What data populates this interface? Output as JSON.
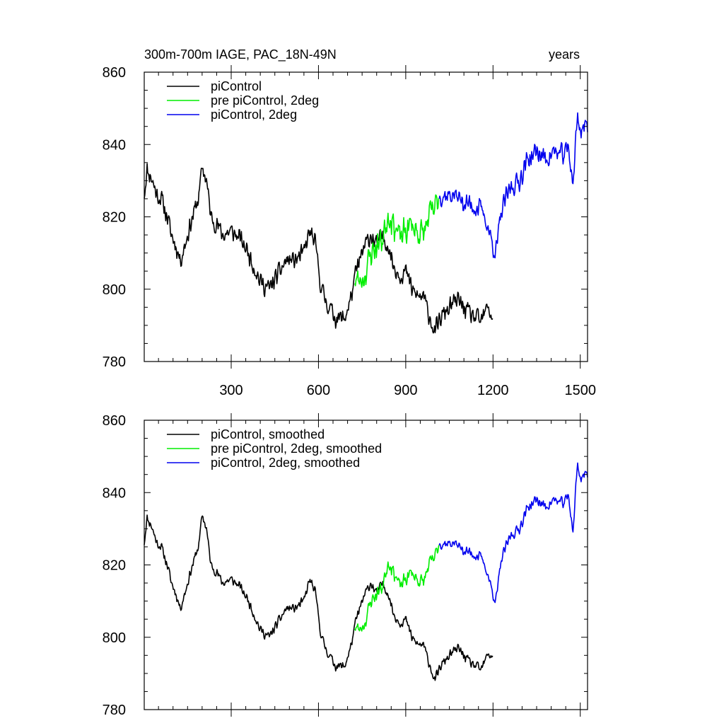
{
  "header": {
    "title_left": "300m-700m IAGE, PAC_18N-49N",
    "title_right": "years"
  },
  "chart_data": [
    {
      "type": "line",
      "xlim": [
        1,
        1525
      ],
      "ylim": [
        780,
        860
      ],
      "x_ticks": [
        300,
        600,
        900,
        1200,
        1500
      ],
      "y_ticks": [
        780,
        800,
        820,
        840,
        860
      ],
      "legend_position": "top-left",
      "series": [
        {
          "name": "piControl",
          "color": "#000000",
          "noise": 3.2,
          "seed": 11,
          "knots": [
            [
              1,
              826
            ],
            [
              10,
              833
            ],
            [
              25,
              831
            ],
            [
              45,
              826
            ],
            [
              60,
              825
            ],
            [
              80,
              820
            ],
            [
              95,
              815
            ],
            [
              110,
              812
            ],
            [
              125,
              808
            ],
            [
              140,
              812
            ],
            [
              160,
              818
            ],
            [
              175,
              822
            ],
            [
              190,
              826
            ],
            [
              200,
              834
            ],
            [
              215,
              830
            ],
            [
              230,
              820
            ],
            [
              250,
              818
            ],
            [
              270,
              815
            ],
            [
              300,
              816
            ],
            [
              330,
              814
            ],
            [
              360,
              810
            ],
            [
              380,
              806
            ],
            [
              400,
              802
            ],
            [
              430,
              800
            ],
            [
              460,
              804
            ],
            [
              490,
              808
            ],
            [
              520,
              808
            ],
            [
              550,
              810
            ],
            [
              570,
              816
            ],
            [
              590,
              812
            ],
            [
              610,
              800
            ],
            [
              630,
              796
            ],
            [
              660,
              792
            ],
            [
              690,
              792
            ],
            [
              710,
              797
            ],
            [
              730,
              805
            ],
            [
              760,
              812
            ],
            [
              780,
              815
            ],
            [
              800,
              812
            ],
            [
              820,
              815
            ],
            [
              840,
              812
            ],
            [
              860,
              806
            ],
            [
              880,
              804
            ],
            [
              900,
              805
            ],
            [
              920,
              800
            ],
            [
              940,
              798
            ],
            [
              960,
              798
            ],
            [
              980,
              793
            ],
            [
              1000,
              788
            ],
            [
              1020,
              792
            ],
            [
              1050,
              795
            ],
            [
              1080,
              797
            ],
            [
              1100,
              795
            ],
            [
              1120,
              793
            ],
            [
              1140,
              792
            ],
            [
              1160,
              791
            ],
            [
              1180,
              795
            ],
            [
              1200,
              792
            ]
          ]
        },
        {
          "name": "pre piControl, 2deg",
          "color": "#00ee00",
          "noise": 5,
          "seed": 23,
          "knots": [
            [
              725,
              803
            ],
            [
              740,
              802
            ],
            [
              760,
              804
            ],
            [
              780,
              810
            ],
            [
              800,
              812
            ],
            [
              820,
              814
            ],
            [
              840,
              821
            ],
            [
              860,
              818
            ],
            [
              880,
              814
            ],
            [
              900,
              816
            ],
            [
              920,
              818
            ],
            [
              940,
              816
            ],
            [
              960,
              815
            ],
            [
              980,
              820
            ],
            [
              1000,
              822
            ],
            [
              1015,
              826
            ]
          ]
        },
        {
          "name": "piControl, 2deg",
          "color": "#0000ee",
          "noise": 3.5,
          "seed": 37,
          "knots": [
            [
              1015,
              826
            ],
            [
              1040,
              826
            ],
            [
              1070,
              826
            ],
            [
              1100,
              824
            ],
            [
              1130,
              823
            ],
            [
              1160,
              822
            ],
            [
              1180,
              818
            ],
            [
              1200,
              812
            ],
            [
              1210,
              810
            ],
            [
              1230,
              822
            ],
            [
              1260,
              828
            ],
            [
              1290,
              830
            ],
            [
              1320,
              836
            ],
            [
              1350,
              838
            ],
            [
              1380,
              836
            ],
            [
              1410,
              838
            ],
            [
              1440,
              837
            ],
            [
              1460,
              839
            ],
            [
              1475,
              829
            ],
            [
              1490,
              848
            ],
            [
              1500,
              844
            ],
            [
              1515,
              845
            ],
            [
              1525,
              845
            ]
          ]
        }
      ]
    },
    {
      "type": "line",
      "xlim": [
        1,
        1525
      ],
      "ylim": [
        780,
        860
      ],
      "x_ticks": [
        300,
        600,
        900,
        1200,
        1500
      ],
      "y_ticks": [
        780,
        800,
        820,
        840,
        860
      ],
      "legend_position": "top-left",
      "series": [
        {
          "name": "piControl, smoothed",
          "color": "#000000",
          "noise": 1.6,
          "seed": 11,
          "knots": [
            [
              1,
              826
            ],
            [
              10,
              833
            ],
            [
              25,
              831
            ],
            [
              45,
              826
            ],
            [
              60,
              825
            ],
            [
              80,
              820
            ],
            [
              95,
              815
            ],
            [
              110,
              812
            ],
            [
              125,
              808
            ],
            [
              140,
              812
            ],
            [
              160,
              818
            ],
            [
              175,
              822
            ],
            [
              190,
              826
            ],
            [
              200,
              834
            ],
            [
              215,
              830
            ],
            [
              230,
              820
            ],
            [
              250,
              818
            ],
            [
              270,
              815
            ],
            [
              300,
              816
            ],
            [
              330,
              814
            ],
            [
              360,
              810
            ],
            [
              380,
              806
            ],
            [
              400,
              802
            ],
            [
              430,
              800
            ],
            [
              460,
              804
            ],
            [
              490,
              808
            ],
            [
              520,
              808
            ],
            [
              550,
              810
            ],
            [
              570,
              816
            ],
            [
              590,
              812
            ],
            [
              610,
              800
            ],
            [
              630,
              796
            ],
            [
              660,
              792
            ],
            [
              690,
              792
            ],
            [
              710,
              797
            ],
            [
              730,
              805
            ],
            [
              760,
              812
            ],
            [
              780,
              815
            ],
            [
              800,
              812
            ],
            [
              820,
              815
            ],
            [
              840,
              812
            ],
            [
              860,
              806
            ],
            [
              880,
              804
            ],
            [
              900,
              805
            ],
            [
              920,
              800
            ],
            [
              940,
              798
            ],
            [
              960,
              798
            ],
            [
              980,
              793
            ],
            [
              1000,
              788
            ],
            [
              1020,
              792
            ],
            [
              1050,
              795
            ],
            [
              1080,
              797
            ],
            [
              1100,
              795
            ],
            [
              1120,
              793
            ],
            [
              1140,
              792
            ],
            [
              1160,
              791
            ],
            [
              1180,
              795
            ],
            [
              1200,
              795
            ]
          ]
        },
        {
          "name": "pre piControl, 2deg, smoothed",
          "color": "#00ee00",
          "noise": 2.5,
          "seed": 23,
          "knots": [
            [
              725,
              803
            ],
            [
              740,
              802
            ],
            [
              760,
              804
            ],
            [
              780,
              810
            ],
            [
              800,
              812
            ],
            [
              820,
              814
            ],
            [
              840,
              821
            ],
            [
              860,
              818
            ],
            [
              880,
              814
            ],
            [
              900,
              816
            ],
            [
              920,
              818
            ],
            [
              940,
              816
            ],
            [
              960,
              815
            ],
            [
              980,
              820
            ],
            [
              1000,
              822
            ],
            [
              1015,
              826
            ]
          ]
        },
        {
          "name": "piControl, 2deg, smoothed",
          "color": "#0000ee",
          "noise": 1.8,
          "seed": 37,
          "knots": [
            [
              1015,
              826
            ],
            [
              1040,
              826
            ],
            [
              1070,
              826
            ],
            [
              1100,
              824
            ],
            [
              1130,
              823
            ],
            [
              1160,
              822
            ],
            [
              1180,
              818
            ],
            [
              1200,
              812
            ],
            [
              1210,
              810
            ],
            [
              1230,
              822
            ],
            [
              1260,
              828
            ],
            [
              1290,
              830
            ],
            [
              1320,
              836
            ],
            [
              1350,
              838
            ],
            [
              1380,
              836
            ],
            [
              1410,
              838
            ],
            [
              1440,
              837
            ],
            [
              1460,
              839
            ],
            [
              1475,
              829
            ],
            [
              1490,
              848
            ],
            [
              1500,
              844
            ],
            [
              1515,
              845
            ],
            [
              1525,
              845
            ]
          ]
        }
      ]
    }
  ]
}
